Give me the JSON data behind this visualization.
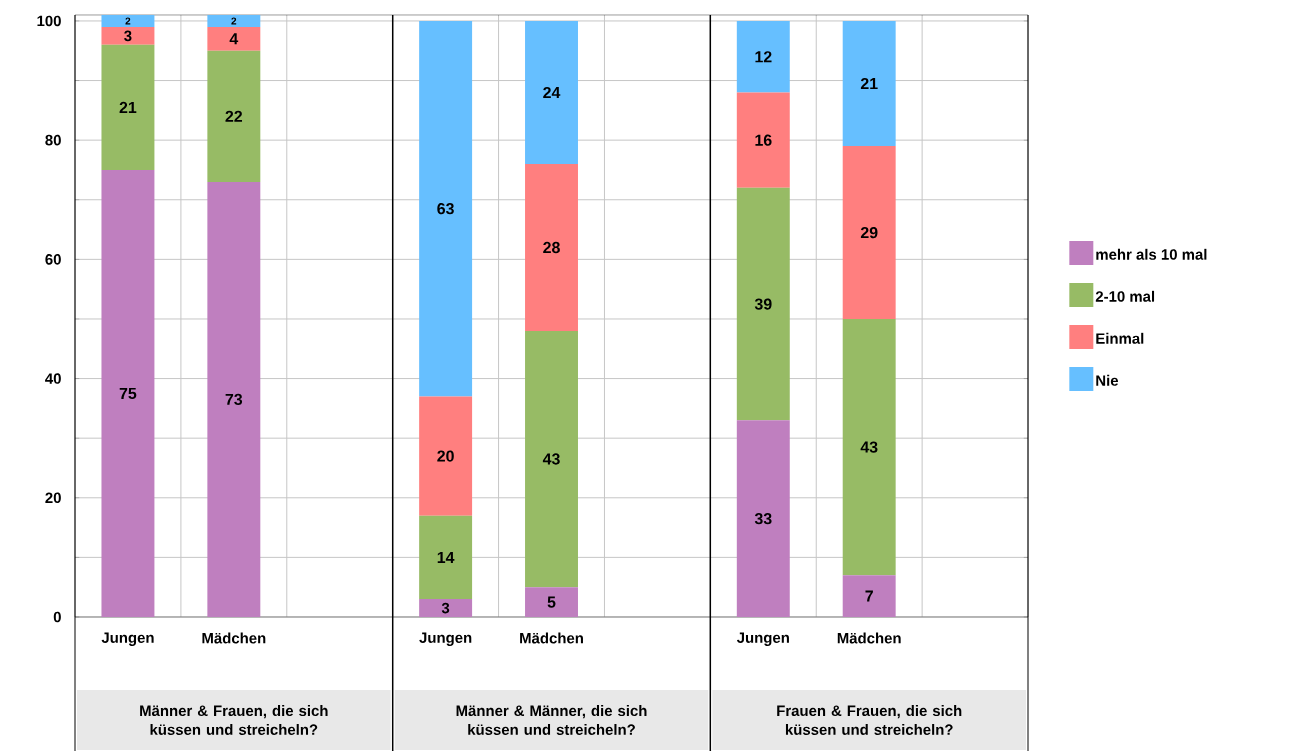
{
  "chart_data": {
    "type": "bar",
    "stacked": true,
    "data_labels": true,
    "grid": true,
    "legend": "right",
    "categories": [
      "Jungen",
      "Mädchen",
      null,
      "Jungen",
      "Mädchen",
      null,
      "Jungen",
      "Mädchen",
      null
    ],
    "series": [
      {
        "name": "mehr als 10 mal",
        "color": "#bf7fbf",
        "values": [
          75,
          73,
          null,
          3,
          5,
          null,
          33,
          7,
          null
        ]
      },
      {
        "name": "2-10 mal",
        "color": "#97bb65",
        "values": [
          21,
          22,
          null,
          14,
          43,
          null,
          39,
          43,
          null
        ]
      },
      {
        "name": "Einmal",
        "color": "#ff7f7f",
        "values": [
          3,
          4,
          null,
          20,
          28,
          null,
          16,
          29,
          null
        ]
      },
      {
        "name": "Nie",
        "color": "#66bfff",
        "values": [
          2,
          2,
          null,
          63,
          24,
          null,
          12,
          21,
          null
        ]
      }
    ],
    "ylim": [
      0,
      101
    ],
    "yticks": [
      0,
      {
        "value": 10,
        "label": null
      },
      20,
      {
        "value": 30,
        "label": null
      },
      40,
      {
        "value": 50,
        "label": null
      },
      60,
      {
        "value": 70,
        "label": null
      },
      80,
      {
        "value": 90,
        "label": null
      },
      100
    ],
    "annotations": [
      "Männer & Frauen, die sich küssen und streicheln?",
      "Männer & Männer, die sich küssen und streicheln?",
      "Frauen & Frauen, die sich küssen und streicheln?"
    ]
  }
}
